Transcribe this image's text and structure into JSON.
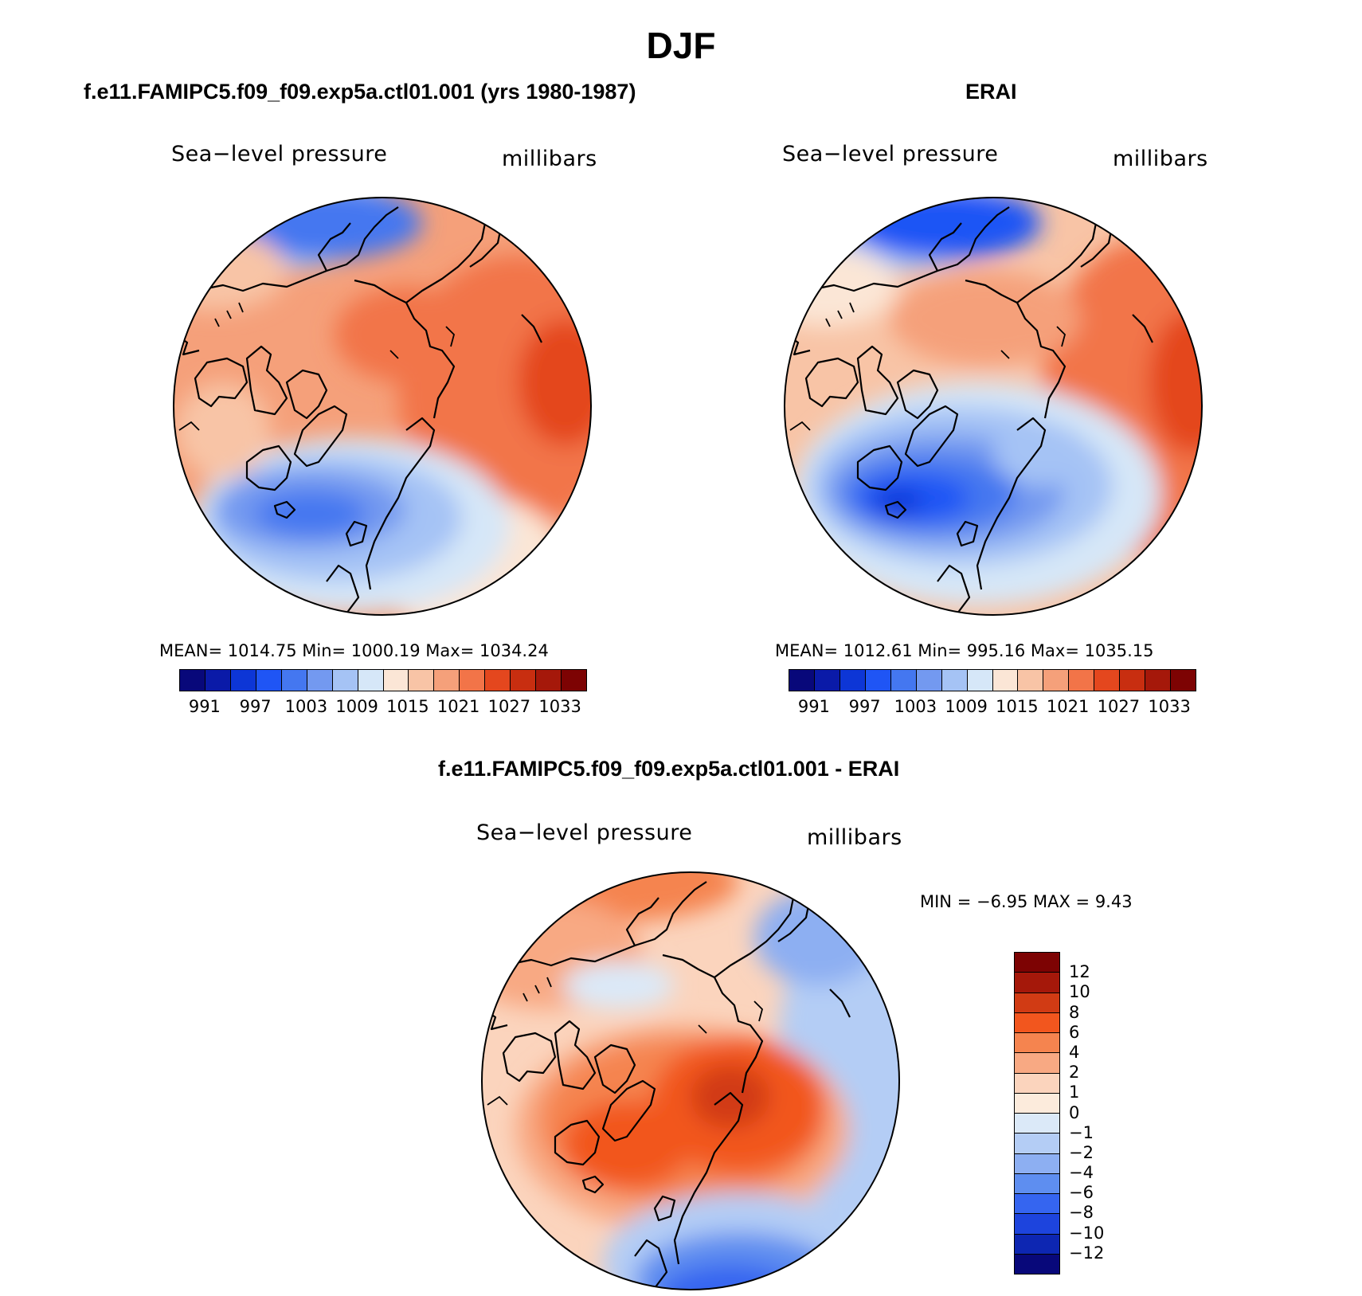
{
  "title": "DJF",
  "panels": {
    "model": {
      "title": "f.e11.FAMIPC5.f09_f09.exp5a.ctl01.001 (yrs 1980-1987)",
      "left_label": "Sea−level pressure",
      "right_label": "millibars",
      "stats": "MEAN=  1014.75   Min=  1000.19   Max=  1034.24"
    },
    "obs": {
      "title": "ERAI",
      "left_label": "Sea−level pressure",
      "right_label": "millibars",
      "stats": "MEAN=  1012.61   Min=  995.16   Max=  1035.15"
    },
    "diff": {
      "title": "f.e11.FAMIPC5.f09_f09.exp5a.ctl01.001 - ERAI",
      "left_label": "Sea−level pressure",
      "right_label": "millibars",
      "minmax": "MIN =   −6.95  MAX =     9.43"
    }
  },
  "colorbar_abs": {
    "colors": [
      "#08087a",
      "#0a1aa8",
      "#0d36d6",
      "#1f55f5",
      "#4477f0",
      "#7399f0",
      "#a5c3f5",
      "#d6e7f8",
      "#fbe6d6",
      "#f8c4a6",
      "#f5a07a",
      "#f27448",
      "#e4471e",
      "#c82e10",
      "#a5180a",
      "#7d0303"
    ],
    "labels": [
      "991",
      "997",
      "1003",
      "1009",
      "1015",
      "1021",
      "1027",
      "1033"
    ]
  },
  "colorbar_diff": {
    "colors": [
      "#7d0303",
      "#a5180a",
      "#d13b14",
      "#f2561e",
      "#f5844f",
      "#f8a983",
      "#fbd4bd",
      "#fcebdc",
      "#dbe9f8",
      "#b4cdf5",
      "#8daff2",
      "#5e8ef0",
      "#3565f0",
      "#1d44dd",
      "#0d26b2",
      "#08087a"
    ],
    "labels": [
      "12",
      "10",
      "8",
      "6",
      "4",
      "2",
      "1",
      "0",
      "−1",
      "−2",
      "−4",
      "−6",
      "−8",
      "−10",
      "−12"
    ]
  }
}
